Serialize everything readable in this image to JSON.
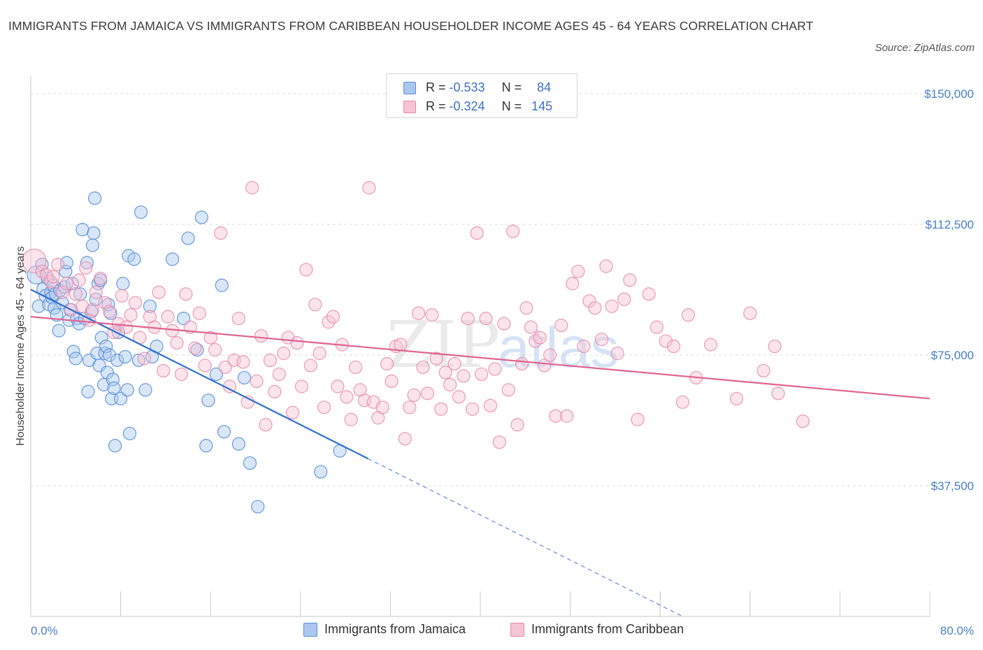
{
  "header": {
    "title": "IMMIGRANTS FROM JAMAICA VS IMMIGRANTS FROM CARIBBEAN HOUSEHOLDER INCOME AGES 45 - 64 YEARS CORRELATION CHART",
    "source": "Source: ZipAtlas.com"
  },
  "colors": {
    "blue": "#5b8fd6",
    "blue_fill": "#aac8ef",
    "blue_line": "#2f6fd0",
    "pink": "#e98aab",
    "pink_fill": "#f6c3d4",
    "pink_line": "#e2628f",
    "tick_text": "#4a7fc8"
  },
  "legend": {
    "r_label": "R =",
    "n_label": "N =",
    "series": [
      {
        "name": "Immigrants from Jamaica",
        "r": "-0.533",
        "n": "84"
      },
      {
        "name": "Immigrants from Caribbean",
        "r": "-0.324",
        "n": "145"
      }
    ]
  },
  "watermark": {
    "zip": "ZIP",
    "atlas": "atlas"
  },
  "chart_data": {
    "type": "scatter",
    "xlabel": "",
    "ylabel": "Householder Income Ages 45 - 64 years",
    "xlim": [
      0,
      80
    ],
    "ylim": [
      0,
      150000
    ],
    "x_tick_labels": [
      "0.0%",
      "80.0%"
    ],
    "y_ticks": [
      37500,
      75000,
      112500,
      150000
    ],
    "y_tick_labels": [
      "$37,500",
      "$75,000",
      "$112,500",
      "$150,000"
    ],
    "grid": true,
    "legend_position": "top-center",
    "series": [
      {
        "name": "Immigrants from Jamaica",
        "color": "#5b8fd6",
        "trend": {
          "x": [
            0,
            30
          ],
          "y": [
            93800,
            45300
          ],
          "dashed_to": [
            58,
            0
          ]
        },
        "points": [
          [
            0.5,
            98000
          ],
          [
            0.7,
            89000
          ],
          [
            1.0,
            101000
          ],
          [
            1.1,
            94000
          ],
          [
            1.3,
            92000
          ],
          [
            1.5,
            97000
          ],
          [
            1.6,
            89500
          ],
          [
            1.8,
            93000
          ],
          [
            1.9,
            91500
          ],
          [
            2.0,
            95000
          ],
          [
            2.1,
            88500
          ],
          [
            2.2,
            92500
          ],
          [
            2.3,
            86500
          ],
          [
            2.5,
            82000
          ],
          [
            2.6,
            93500
          ],
          [
            2.8,
            90000
          ],
          [
            3.0,
            94500
          ],
          [
            3.1,
            99000
          ],
          [
            3.2,
            101500
          ],
          [
            3.4,
            85000
          ],
          [
            3.5,
            88000
          ],
          [
            3.7,
            95500
          ],
          [
            3.8,
            76000
          ],
          [
            4.0,
            74000
          ],
          [
            4.1,
            85500
          ],
          [
            4.3,
            84000
          ],
          [
            4.4,
            92500
          ],
          [
            4.6,
            111000
          ],
          [
            4.8,
            85500
          ],
          [
            5.0,
            101500
          ],
          [
            5.1,
            64500
          ],
          [
            5.2,
            73500
          ],
          [
            5.4,
            87500
          ],
          [
            5.5,
            106500
          ],
          [
            5.6,
            110000
          ],
          [
            5.7,
            120000
          ],
          [
            5.8,
            91000
          ],
          [
            5.9,
            75500
          ],
          [
            6.0,
            95500
          ],
          [
            6.1,
            72000
          ],
          [
            6.2,
            96500
          ],
          [
            6.3,
            80000
          ],
          [
            6.5,
            66500
          ],
          [
            6.6,
            75500
          ],
          [
            6.7,
            77500
          ],
          [
            6.8,
            70000
          ],
          [
            6.9,
            89500
          ],
          [
            7.0,
            75000
          ],
          [
            7.1,
            87000
          ],
          [
            7.2,
            62500
          ],
          [
            7.3,
            68000
          ],
          [
            7.4,
            65500
          ],
          [
            7.5,
            49000
          ],
          [
            7.7,
            73500
          ],
          [
            7.8,
            81500
          ],
          [
            8.0,
            62500
          ],
          [
            8.2,
            95500
          ],
          [
            8.4,
            74500
          ],
          [
            8.6,
            65000
          ],
          [
            8.7,
            103500
          ],
          [
            8.8,
            52500
          ],
          [
            9.2,
            102500
          ],
          [
            9.6,
            73500
          ],
          [
            9.8,
            116000
          ],
          [
            10.2,
            65000
          ],
          [
            10.6,
            89000
          ],
          [
            10.8,
            74500
          ],
          [
            11.2,
            77500
          ],
          [
            12.6,
            102500
          ],
          [
            13.6,
            85500
          ],
          [
            14.0,
            108500
          ],
          [
            14.8,
            76500
          ],
          [
            15.2,
            114500
          ],
          [
            15.6,
            49000
          ],
          [
            15.8,
            62000
          ],
          [
            16.5,
            69500
          ],
          [
            17.0,
            95000
          ],
          [
            17.2,
            53000
          ],
          [
            18.5,
            49500
          ],
          [
            19.0,
            68500
          ],
          [
            19.5,
            44000
          ],
          [
            20.2,
            31500
          ],
          [
            25.8,
            41500
          ],
          [
            27.5,
            47500
          ]
        ]
      },
      {
        "name": "Immigrants from Caribbean",
        "color": "#e98aab",
        "trend": {
          "x": [
            0,
            80
          ],
          "y": [
            86000,
            62500
          ]
        },
        "points": [
          [
            0.3,
            102000
          ],
          [
            1.0,
            99000
          ],
          [
            1.4,
            98000
          ],
          [
            1.8,
            96000
          ],
          [
            2.0,
            97500
          ],
          [
            2.4,
            101000
          ],
          [
            2.8,
            93000
          ],
          [
            3.2,
            95500
          ],
          [
            3.6,
            88000
          ],
          [
            4.0,
            92500
          ],
          [
            4.3,
            96500
          ],
          [
            4.6,
            89000
          ],
          [
            4.9,
            100000
          ],
          [
            5.2,
            85000
          ],
          [
            5.5,
            88000
          ],
          [
            5.8,
            93000
          ],
          [
            6.2,
            97000
          ],
          [
            6.6,
            90000
          ],
          [
            7.0,
            87500
          ],
          [
            7.4,
            81500
          ],
          [
            7.8,
            84000
          ],
          [
            8.1,
            92000
          ],
          [
            8.5,
            83000
          ],
          [
            8.9,
            86500
          ],
          [
            9.3,
            90000
          ],
          [
            9.7,
            80000
          ],
          [
            10.1,
            74000
          ],
          [
            10.6,
            86000
          ],
          [
            11.0,
            83000
          ],
          [
            11.4,
            93000
          ],
          [
            11.8,
            70500
          ],
          [
            12.2,
            86000
          ],
          [
            12.6,
            82000
          ],
          [
            13.0,
            78500
          ],
          [
            13.4,
            69500
          ],
          [
            13.8,
            92500
          ],
          [
            14.2,
            83000
          ],
          [
            14.6,
            77000
          ],
          [
            15.0,
            87000
          ],
          [
            15.5,
            72000
          ],
          [
            16.0,
            80000
          ],
          [
            16.4,
            76500
          ],
          [
            16.9,
            110000
          ],
          [
            17.3,
            71500
          ],
          [
            17.7,
            66000
          ],
          [
            18.1,
            73500
          ],
          [
            18.5,
            85500
          ],
          [
            18.9,
            73000
          ],
          [
            19.3,
            61500
          ],
          [
            19.7,
            123000
          ],
          [
            20.1,
            67500
          ],
          [
            20.5,
            80500
          ],
          [
            20.9,
            55000
          ],
          [
            21.3,
            73500
          ],
          [
            21.7,
            64500
          ],
          [
            22.1,
            69500
          ],
          [
            22.5,
            75500
          ],
          [
            22.9,
            80000
          ],
          [
            23.3,
            58500
          ],
          [
            23.7,
            78500
          ],
          [
            24.1,
            66000
          ],
          [
            24.5,
            99500
          ],
          [
            24.9,
            72000
          ],
          [
            25.3,
            89500
          ],
          [
            25.7,
            75500
          ],
          [
            26.1,
            60000
          ],
          [
            26.5,
            84500
          ],
          [
            26.9,
            86000
          ],
          [
            27.3,
            66000
          ],
          [
            27.7,
            78000
          ],
          [
            28.1,
            63000
          ],
          [
            28.5,
            56500
          ],
          [
            28.9,
            71500
          ],
          [
            29.3,
            65000
          ],
          [
            29.7,
            62000
          ],
          [
            30.1,
            123000
          ],
          [
            30.5,
            61500
          ],
          [
            30.9,
            57000
          ],
          [
            31.3,
            60000
          ],
          [
            31.7,
            72500
          ],
          [
            32.1,
            67500
          ],
          [
            32.5,
            77500
          ],
          [
            32.9,
            78000
          ],
          [
            33.3,
            51000
          ],
          [
            33.7,
            60000
          ],
          [
            34.1,
            63500
          ],
          [
            34.5,
            87000
          ],
          [
            34.9,
            71500
          ],
          [
            35.3,
            64000
          ],
          [
            35.7,
            86500
          ],
          [
            36.1,
            74000
          ],
          [
            36.5,
            59500
          ],
          [
            36.9,
            70000
          ],
          [
            37.3,
            66500
          ],
          [
            37.7,
            72500
          ],
          [
            38.1,
            63000
          ],
          [
            38.5,
            69000
          ],
          [
            38.9,
            85500
          ],
          [
            39.3,
            59500
          ],
          [
            39.7,
            110000
          ],
          [
            40.1,
            69500
          ],
          [
            40.5,
            85500
          ],
          [
            40.9,
            60500
          ],
          [
            41.3,
            71000
          ],
          [
            41.7,
            50000
          ],
          [
            42.1,
            84000
          ],
          [
            42.5,
            65000
          ],
          [
            42.9,
            110500
          ],
          [
            43.3,
            55000
          ],
          [
            43.7,
            72500
          ],
          [
            44.1,
            88500
          ],
          [
            44.5,
            83000
          ],
          [
            44.9,
            79000
          ],
          [
            45.3,
            80000
          ],
          [
            45.7,
            72000
          ],
          [
            46.2,
            75000
          ],
          [
            46.7,
            57500
          ],
          [
            47.2,
            83500
          ],
          [
            47.7,
            57500
          ],
          [
            48.2,
            95500
          ],
          [
            48.7,
            99000
          ],
          [
            49.2,
            77500
          ],
          [
            49.7,
            90500
          ],
          [
            50.2,
            88500
          ],
          [
            50.8,
            79500
          ],
          [
            51.2,
            100500
          ],
          [
            51.7,
            89000
          ],
          [
            52.2,
            75500
          ],
          [
            52.8,
            91000
          ],
          [
            53.3,
            96500
          ],
          [
            54.0,
            56500
          ],
          [
            55.0,
            92500
          ],
          [
            55.7,
            83000
          ],
          [
            56.5,
            79000
          ],
          [
            57.2,
            77500
          ],
          [
            58.0,
            61500
          ],
          [
            58.5,
            86500
          ],
          [
            59.2,
            68500
          ],
          [
            60.5,
            78000
          ],
          [
            62.8,
            62500
          ],
          [
            64.0,
            87000
          ],
          [
            65.2,
            70500
          ],
          [
            66.2,
            77500
          ],
          [
            66.5,
            64000
          ],
          [
            68.7,
            56000
          ]
        ]
      }
    ]
  }
}
